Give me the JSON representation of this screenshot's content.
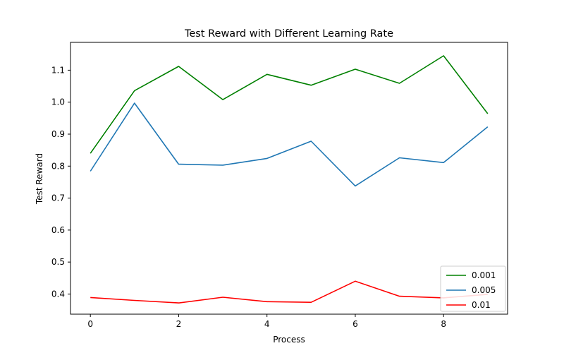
{
  "chart_data": {
    "type": "line",
    "title": "Test Reward with Different Learning Rate",
    "xlabel": "Process",
    "ylabel": "Test Reward",
    "x": [
      0,
      1,
      2,
      3,
      4,
      5,
      6,
      7,
      8,
      9
    ],
    "xlim": [
      -0.45,
      9.45
    ],
    "ylim": [
      0.337,
      1.187
    ],
    "xticks": [
      0,
      2,
      4,
      6,
      8
    ],
    "yticks": [
      0.4,
      0.5,
      0.6,
      0.7,
      0.8,
      0.9,
      1.0,
      1.1
    ],
    "grid": false,
    "legend_position": "lower-right",
    "series": [
      {
        "name": "0.001",
        "color": "#008000",
        "values": [
          0.84,
          1.036,
          1.112,
          1.008,
          1.087,
          1.053,
          1.103,
          1.059,
          1.145,
          0.964
        ]
      },
      {
        "name": "0.005",
        "color": "#1f77b4",
        "values": [
          0.784,
          0.997,
          0.806,
          0.803,
          0.824,
          0.878,
          0.738,
          0.826,
          0.811,
          0.923
        ]
      },
      {
        "name": "0.01",
        "color": "#ff0000",
        "values": [
          0.389,
          0.38,
          0.372,
          0.39,
          0.376,
          0.374,
          0.44,
          0.393,
          0.388,
          0.399
        ]
      }
    ]
  }
}
